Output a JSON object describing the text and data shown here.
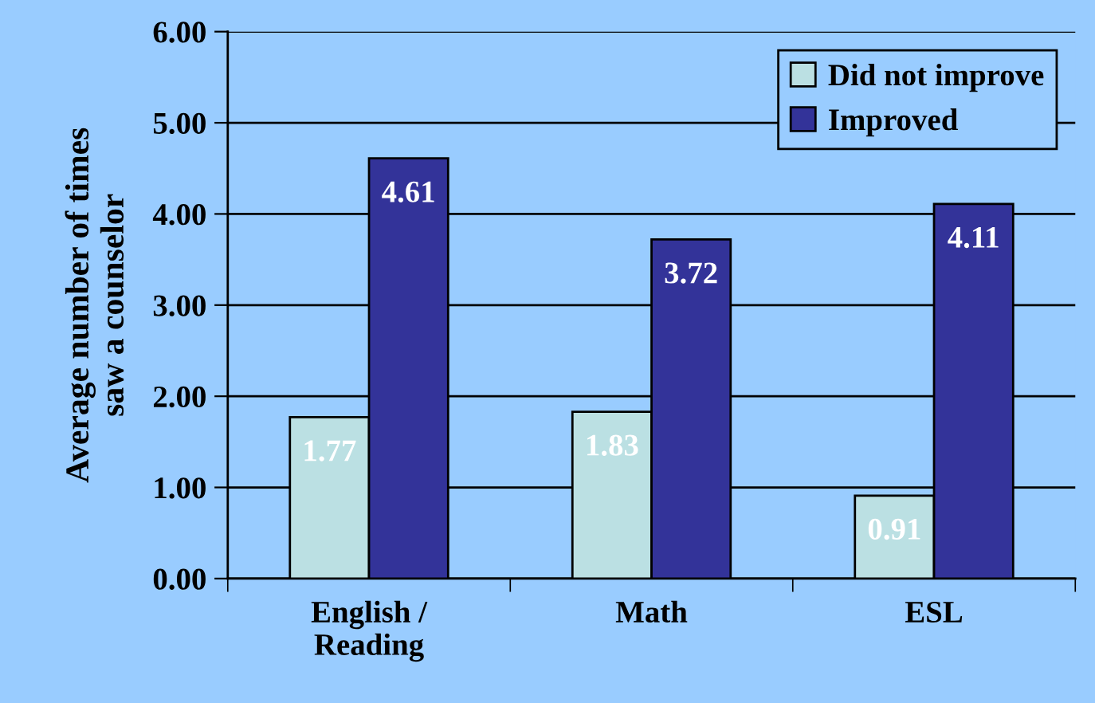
{
  "chart_data": {
    "type": "bar",
    "categories": [
      "English /\nReading",
      "Math",
      "ESL"
    ],
    "series": [
      {
        "name": "Did not improve",
        "color": "#bbe0e3",
        "values": [
          1.77,
          1.83,
          0.91
        ]
      },
      {
        "name": "Improved",
        "color": "#333399",
        "values": [
          4.61,
          3.72,
          4.11
        ]
      }
    ],
    "ylabel": "Average number of times\nsaw a counselor",
    "ylim": [
      0,
      6
    ],
    "yticks": [
      {
        "value": 0,
        "label": "0.00"
      },
      {
        "value": 1,
        "label": "1.00"
      },
      {
        "value": 2,
        "label": "2.00"
      },
      {
        "value": 3,
        "label": "3.00"
      },
      {
        "value": 4,
        "label": "4.00"
      },
      {
        "value": 5,
        "label": "5.00"
      },
      {
        "value": 6,
        "label": "6.00"
      }
    ],
    "grid": "y",
    "legend": "top right",
    "data_labels": true
  }
}
